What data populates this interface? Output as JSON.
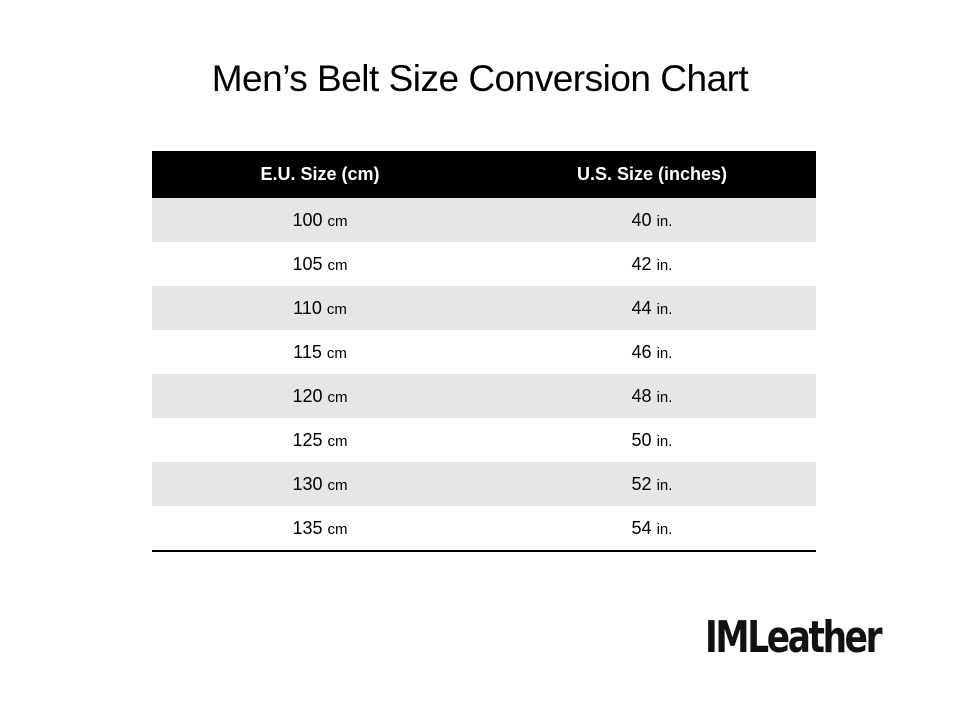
{
  "title": "Men’s Belt Size Conversion Chart",
  "table": {
    "headers": [
      "E.U. Size (cm)",
      "U.S. Size (inches)"
    ],
    "rows": [
      [
        {
          "num": 100,
          "unit": "cm"
        },
        {
          "num": 40,
          "unit": "in."
        }
      ],
      [
        {
          "num": 105,
          "unit": "cm"
        },
        {
          "num": 42,
          "unit": "in."
        }
      ],
      [
        {
          "num": 110,
          "unit": "cm"
        },
        {
          "num": 44,
          "unit": "in."
        }
      ],
      [
        {
          "num": 115,
          "unit": "cm"
        },
        {
          "num": 46,
          "unit": "in."
        }
      ],
      [
        {
          "num": 120,
          "unit": "cm"
        },
        {
          "num": 48,
          "unit": "in."
        }
      ],
      [
        {
          "num": 125,
          "unit": "cm"
        },
        {
          "num": 50,
          "unit": "in."
        }
      ],
      [
        {
          "num": 130,
          "unit": "cm"
        },
        {
          "num": 52,
          "unit": "in."
        }
      ],
      [
        {
          "num": 135,
          "unit": "cm"
        },
        {
          "num": 54,
          "unit": "in."
        }
      ]
    ]
  },
  "logo": "IMLeather"
}
